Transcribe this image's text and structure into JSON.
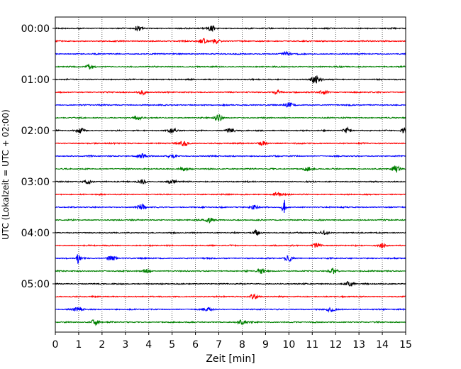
{
  "chart_data": {
    "type": "line",
    "chart_kind": "helicorder",
    "title": "",
    "xlabel": "Zeit  [min]",
    "ylabel": "UTC (Lokalzeit = UTC + 02:00)",
    "xlim": [
      0,
      15
    ],
    "x_ticks": [
      "0",
      "1",
      "2",
      "3",
      "4",
      "5",
      "6",
      "7",
      "8",
      "9",
      "10",
      "11",
      "12",
      "13",
      "14",
      "15"
    ],
    "y_ticks": [
      "00:00",
      "01:00",
      "02:00",
      "03:00",
      "04:00",
      "05:00"
    ],
    "grid": "vertical dotted",
    "trace_interval_minutes": 15,
    "trace_colors": [
      "#000000",
      "#ff0000",
      "#0000ff",
      "#008000"
    ],
    "traces": [
      {
        "start": "00:00",
        "color": "#000000",
        "events": [
          {
            "x": 3.5,
            "amp": 0.35
          },
          {
            "x": 6.7,
            "amp": 0.4
          }
        ]
      },
      {
        "start": "00:15",
        "color": "#ff0000",
        "events": [
          {
            "x": 6.3,
            "amp": 0.45
          },
          {
            "x": 6.9,
            "amp": 0.35
          }
        ]
      },
      {
        "start": "00:30",
        "color": "#0000ff",
        "events": [
          {
            "x": 9.9,
            "amp": 0.3
          }
        ]
      },
      {
        "start": "00:45",
        "color": "#008000",
        "events": [
          {
            "x": 1.5,
            "amp": 0.35
          }
        ]
      },
      {
        "start": "01:00",
        "color": "#000000",
        "events": [
          {
            "x": 11.1,
            "amp": 0.45
          },
          {
            "x": 11.3,
            "amp": 0.3
          }
        ]
      },
      {
        "start": "01:15",
        "color": "#ff0000",
        "events": [
          {
            "x": 3.7,
            "amp": 0.35
          },
          {
            "x": 9.5,
            "amp": 0.3
          },
          {
            "x": 11.5,
            "amp": 0.35
          }
        ]
      },
      {
        "start": "01:30",
        "color": "#0000ff",
        "events": [
          {
            "x": 10.0,
            "amp": 0.3
          }
        ]
      },
      {
        "start": "01:45",
        "color": "#008000",
        "events": [
          {
            "x": 3.5,
            "amp": 0.35
          },
          {
            "x": 7.0,
            "amp": 0.5
          }
        ]
      },
      {
        "start": "02:00",
        "color": "#000000",
        "events": [
          {
            "x": 1.1,
            "amp": 0.4
          },
          {
            "x": 5.0,
            "amp": 0.4
          },
          {
            "x": 7.5,
            "amp": 0.35
          },
          {
            "x": 12.5,
            "amp": 0.4
          },
          {
            "x": 15.0,
            "amp": 0.45
          }
        ]
      },
      {
        "start": "02:15",
        "color": "#ff0000",
        "events": [
          {
            "x": 5.5,
            "amp": 0.45
          },
          {
            "x": 8.9,
            "amp": 0.4
          }
        ]
      },
      {
        "start": "02:30",
        "color": "#0000ff",
        "events": [
          {
            "x": 3.7,
            "amp": 0.35
          },
          {
            "x": 5.0,
            "amp": 0.3
          }
        ]
      },
      {
        "start": "02:45",
        "color": "#008000",
        "events": [
          {
            "x": 5.5,
            "amp": 0.3
          },
          {
            "x": 10.8,
            "amp": 0.35
          },
          {
            "x": 14.6,
            "amp": 0.5
          }
        ]
      },
      {
        "start": "03:00",
        "color": "#000000",
        "events": [
          {
            "x": 1.4,
            "amp": 0.4
          },
          {
            "x": 3.7,
            "amp": 0.4
          },
          {
            "x": 5.0,
            "amp": 0.35
          }
        ]
      },
      {
        "start": "03:15",
        "color": "#ff0000",
        "events": [
          {
            "x": 9.5,
            "amp": 0.35
          }
        ]
      },
      {
        "start": "03:30",
        "color": "#0000ff",
        "events": [
          {
            "x": 3.7,
            "amp": 0.4
          },
          {
            "x": 8.5,
            "amp": 0.35
          },
          {
            "x": 9.8,
            "amp": 1.6
          }
        ]
      },
      {
        "start": "03:45",
        "color": "#008000",
        "events": [
          {
            "x": 6.6,
            "amp": 0.35
          }
        ]
      },
      {
        "start": "04:00",
        "color": "#000000",
        "events": [
          {
            "x": 8.6,
            "amp": 0.4
          },
          {
            "x": 11.5,
            "amp": 0.35
          }
        ]
      },
      {
        "start": "04:15",
        "color": "#ff0000",
        "events": [
          {
            "x": 11.2,
            "amp": 0.35
          },
          {
            "x": 14.0,
            "amp": 0.35
          }
        ]
      },
      {
        "start": "04:30",
        "color": "#0000ff",
        "events": [
          {
            "x": 1.0,
            "amp": 1.1
          },
          {
            "x": 2.4,
            "amp": 0.5
          },
          {
            "x": 10.0,
            "amp": 0.4
          }
        ]
      },
      {
        "start": "04:45",
        "color": "#008000",
        "events": [
          {
            "x": 3.9,
            "amp": 0.35
          },
          {
            "x": 8.8,
            "amp": 0.4
          },
          {
            "x": 11.9,
            "amp": 0.5
          }
        ]
      },
      {
        "start": "05:00",
        "color": "#000000",
        "events": [
          {
            "x": 12.6,
            "amp": 0.4
          }
        ]
      },
      {
        "start": "05:15",
        "color": "#ff0000",
        "events": [
          {
            "x": 8.5,
            "amp": 0.35
          }
        ]
      },
      {
        "start": "05:30",
        "color": "#0000ff",
        "events": [
          {
            "x": 1.0,
            "amp": 0.35
          },
          {
            "x": 6.5,
            "amp": 0.3
          },
          {
            "x": 11.8,
            "amp": 0.35
          }
        ]
      },
      {
        "start": "05:45",
        "color": "#008000",
        "events": [
          {
            "x": 1.7,
            "amp": 0.4
          },
          {
            "x": 8.0,
            "amp": 0.35
          }
        ]
      }
    ]
  }
}
